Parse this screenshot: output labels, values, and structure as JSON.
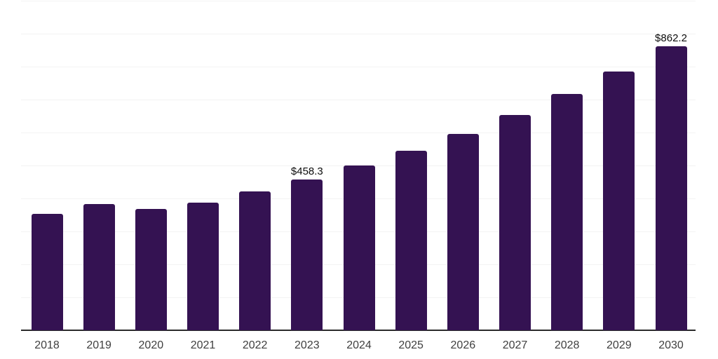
{
  "chart_data": {
    "type": "bar",
    "title": "",
    "xlabel": "",
    "ylabel": "",
    "categories": [
      "2018",
      "2019",
      "2020",
      "2021",
      "2022",
      "2023",
      "2024",
      "2025",
      "2026",
      "2027",
      "2028",
      "2029",
      "2030"
    ],
    "values": [
      352.4,
      382.1,
      367.3,
      386.4,
      420.3,
      458.3,
      500.9,
      545.6,
      596.6,
      653.8,
      717.4,
      785.5,
      862.2
    ],
    "data_labels": [
      "",
      "",
      "",
      "",
      "",
      "$458.3",
      "",
      "",
      "",
      "",
      "",
      "",
      "$862.2"
    ],
    "ylim": [
      0,
      1000
    ],
    "gridline_step": 100,
    "grid": true,
    "legend": false,
    "colors": {
      "bar": "#341252",
      "grid": "#f3f3f3",
      "axis": "#2b2b2b",
      "tick_label": "#3f3f3f",
      "value_label": "#0d0d0d",
      "background": "#ffffff"
    }
  }
}
